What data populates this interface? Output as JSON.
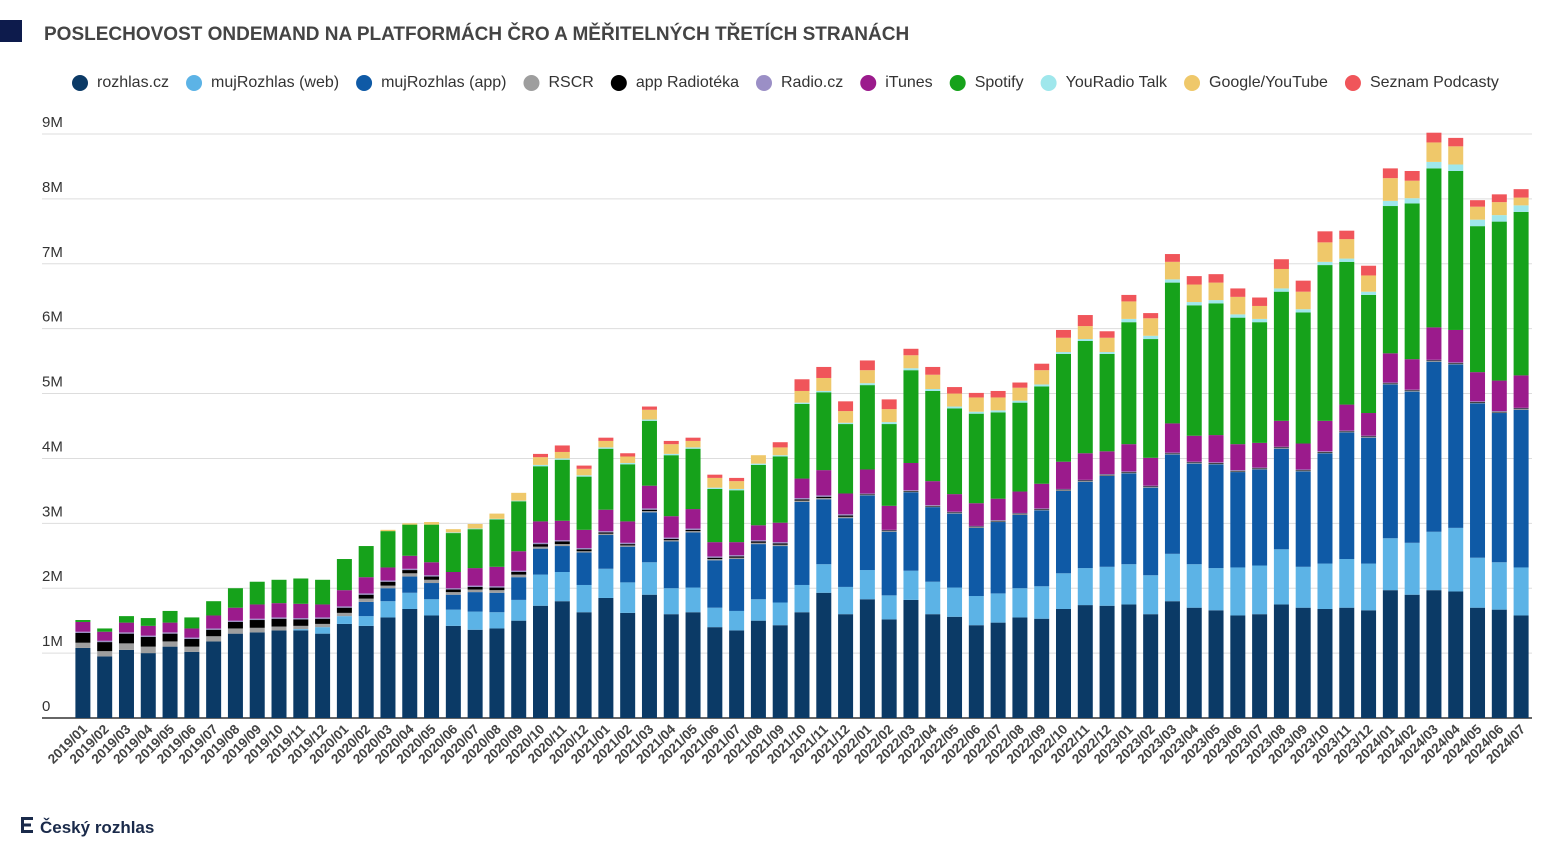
{
  "chart_data": {
    "type": "stacked-bar",
    "title": "POSLECHOVOST ONDEMAND NA PLATFORMÁCH ČRO A MĚŘITELNÝCH TŘETÍCH STRANÁCH",
    "footer": "Český rozhlas",
    "categories": [
      "2019/01",
      "2019/02",
      "2019/03",
      "2019/04",
      "2019/05",
      "2019/06",
      "2019/07",
      "2019/08",
      "2019/09",
      "2019/10",
      "2019/11",
      "2019/12",
      "2020/01",
      "2020/02",
      "2020/03",
      "2020/04",
      "2020/05",
      "2020/06",
      "2020/07",
      "2020/08",
      "2020/09",
      "2020/10",
      "2020/11",
      "2020/12",
      "2021/01",
      "2021/02",
      "2021/03",
      "2021/04",
      "2021/05",
      "2021/06",
      "2021/07",
      "2021/08",
      "2021/09",
      "2021/10",
      "2021/11",
      "2021/12",
      "2022/01",
      "2022/02",
      "2022/03",
      "2022/04",
      "2022/05",
      "2022/06",
      "2022/07",
      "2022/08",
      "2022/09",
      "2022/10",
      "2022/11",
      "2022/12",
      "2023/01",
      "2023/02",
      "2023/03",
      "2023/04",
      "2023/05",
      "2023/06",
      "2023/07",
      "2023/08",
      "2023/09",
      "2023/10",
      "2023/11",
      "2023/12",
      "2024/01",
      "2024/02",
      "2024/03",
      "2024/04",
      "2024/05",
      "2024/06",
      "2024/07"
    ],
    "ylim": [
      0,
      9
    ],
    "yticks": [
      0,
      {
        "value": 1,
        "label": "1M"
      },
      {
        "value": 2,
        "label": "2M"
      },
      {
        "value": 3,
        "label": "3M"
      },
      {
        "value": 4,
        "label": "4M"
      },
      {
        "value": 5,
        "label": "5M"
      },
      {
        "value": 6,
        "label": "6M"
      },
      {
        "value": 7,
        "label": "7M"
      },
      {
        "value": 8,
        "label": "8M"
      },
      {
        "value": 9,
        "label": "9M"
      }
    ],
    "grid": true,
    "legend": "top",
    "series": [
      {
        "name": "rozhlas.cz",
        "color": "#0b3a66",
        "values": [
          1.08,
          0.95,
          1.05,
          1.0,
          1.1,
          1.02,
          1.18,
          1.3,
          1.32,
          1.35,
          1.35,
          1.3,
          1.45,
          1.42,
          1.55,
          1.68,
          1.58,
          1.42,
          1.36,
          1.38,
          1.5,
          1.73,
          1.8,
          1.63,
          1.85,
          1.62,
          1.9,
          1.6,
          1.63,
          1.4,
          1.35,
          1.5,
          1.43,
          1.63,
          1.93,
          1.6,
          1.83,
          1.52,
          1.82,
          1.6,
          1.56,
          1.43,
          1.47,
          1.55,
          1.53,
          1.68,
          1.74,
          1.73,
          1.75,
          1.6,
          1.8,
          1.7,
          1.66,
          1.58,
          1.6,
          1.75,
          1.7,
          1.68,
          1.7,
          1.66,
          1.97,
          1.9,
          1.97,
          1.95,
          1.7,
          1.67,
          1.58
        ]
      },
      {
        "name": "mujRozhlas (web)",
        "color": "#5cb3e6",
        "values": [
          0,
          0,
          0,
          0,
          0,
          0,
          0,
          0,
          0,
          0,
          0.02,
          0.1,
          0.12,
          0.15,
          0.25,
          0.25,
          0.25,
          0.25,
          0.28,
          0.25,
          0.32,
          0.48,
          0.45,
          0.42,
          0.45,
          0.47,
          0.5,
          0.4,
          0.38,
          0.3,
          0.3,
          0.33,
          0.35,
          0.42,
          0.44,
          0.42,
          0.45,
          0.37,
          0.45,
          0.5,
          0.45,
          0.45,
          0.45,
          0.45,
          0.5,
          0.55,
          0.57,
          0.6,
          0.62,
          0.6,
          0.73,
          0.67,
          0.65,
          0.74,
          0.75,
          0.85,
          0.63,
          0.7,
          0.75,
          0.72,
          0.8,
          0.8,
          0.9,
          0.98,
          0.77,
          0.73,
          0.74
        ]
      },
      {
        "name": "mujRozhlas (app)",
        "color": "#0f5aa6",
        "values": [
          0,
          0,
          0,
          0,
          0,
          0,
          0,
          0,
          0,
          0,
          0,
          0,
          0,
          0.22,
          0.2,
          0.25,
          0.25,
          0.23,
          0.3,
          0.3,
          0.35,
          0.4,
          0.4,
          0.5,
          0.52,
          0.55,
          0.77,
          0.72,
          0.85,
          0.73,
          0.8,
          0.85,
          0.87,
          1.28,
          1.0,
          1.06,
          1.15,
          0.98,
          1.21,
          1.15,
          1.14,
          1.05,
          1.1,
          1.13,
          1.17,
          1.27,
          1.33,
          1.4,
          1.4,
          1.35,
          1.53,
          1.55,
          1.6,
          1.47,
          1.48,
          1.55,
          1.47,
          1.7,
          1.95,
          1.94,
          2.37,
          2.33,
          2.62,
          2.52,
          2.38,
          2.3,
          2.43
        ]
      },
      {
        "name": "RSCR",
        "color": "#9e9e9e",
        "values": [
          0.08,
          0.08,
          0.1,
          0.1,
          0.08,
          0.08,
          0.08,
          0.08,
          0.07,
          0.06,
          0.05,
          0.05,
          0.05,
          0.05,
          0.04,
          0.05,
          0.05,
          0.04,
          0.04,
          0.04,
          0.04,
          0.03,
          0.03,
          0.02,
          0.02,
          0.02,
          0.02,
          0.02,
          0.02,
          0.02,
          0.02,
          0.02,
          0.02,
          0.02,
          0.02,
          0.02,
          0.01,
          0.01,
          0.01,
          0.01,
          0.01,
          0.01,
          0.01,
          0.01,
          0.01,
          0.01,
          0.01,
          0.01,
          0.01,
          0.01,
          0.01,
          0.01,
          0.01,
          0.01,
          0.01,
          0.01,
          0.01,
          0.01,
          0.01,
          0.01,
          0.01,
          0.01,
          0.01,
          0.01,
          0.01,
          0.01,
          0.01
        ]
      },
      {
        "name": "app Radiotéka",
        "color": "#000000",
        "values": [
          0.15,
          0.14,
          0.15,
          0.15,
          0.12,
          0.12,
          0.1,
          0.1,
          0.12,
          0.12,
          0.1,
          0.08,
          0.08,
          0.06,
          0.06,
          0.05,
          0.05,
          0.04,
          0.04,
          0.04,
          0.04,
          0.04,
          0.04,
          0.03,
          0.02,
          0.02,
          0.02,
          0.02,
          0.02,
          0.02,
          0.02,
          0.02,
          0.02,
          0.02,
          0.02,
          0.02,
          0.01,
          0.01,
          0.01,
          0.01,
          0.01,
          0.01,
          0.01,
          0.01,
          0.01,
          0.01,
          0.01,
          0.01,
          0.01,
          0.01,
          0.01,
          0.01,
          0.01,
          0.01,
          0.01,
          0.01,
          0.01,
          0.01,
          0.01,
          0.01,
          0.01,
          0.01,
          0.01,
          0.01,
          0.01,
          0.01,
          0.01
        ]
      },
      {
        "name": "Radio.cz",
        "color": "#9b8fc6",
        "values": [
          0.02,
          0.02,
          0.02,
          0.02,
          0.02,
          0.02,
          0.02,
          0.02,
          0.02,
          0.02,
          0.02,
          0.02,
          0.02,
          0.02,
          0.02,
          0.02,
          0.02,
          0.02,
          0.02,
          0.02,
          0.02,
          0.02,
          0.02,
          0.02,
          0.02,
          0.02,
          0.02,
          0.02,
          0.02,
          0.02,
          0.02,
          0.02,
          0.02,
          0.02,
          0.02,
          0.02,
          0.01,
          0.01,
          0.01,
          0.01,
          0.01,
          0.01,
          0.01,
          0.01,
          0.01,
          0.01,
          0.01,
          0.01,
          0.01,
          0.01,
          0.01,
          0.01,
          0.01,
          0.01,
          0.01,
          0.01,
          0.01,
          0.01,
          0.01,
          0.01,
          0.01,
          0.01,
          0.01,
          0.01,
          0.01,
          0.01,
          0.01
        ]
      },
      {
        "name": "iTunes",
        "color": "#9b1b8c",
        "values": [
          0.15,
          0.14,
          0.15,
          0.15,
          0.15,
          0.14,
          0.2,
          0.2,
          0.22,
          0.22,
          0.22,
          0.2,
          0.25,
          0.25,
          0.2,
          0.2,
          0.2,
          0.25,
          0.27,
          0.3,
          0.3,
          0.33,
          0.3,
          0.28,
          0.33,
          0.33,
          0.35,
          0.33,
          0.3,
          0.22,
          0.2,
          0.23,
          0.3,
          0.3,
          0.39,
          0.32,
          0.37,
          0.37,
          0.42,
          0.37,
          0.27,
          0.35,
          0.33,
          0.33,
          0.38,
          0.42,
          0.41,
          0.35,
          0.42,
          0.43,
          0.45,
          0.4,
          0.42,
          0.4,
          0.38,
          0.4,
          0.4,
          0.47,
          0.4,
          0.35,
          0.45,
          0.47,
          0.5,
          0.5,
          0.45,
          0.47,
          0.5
        ]
      },
      {
        "name": "Spotify",
        "color": "#16a21b",
        "values": [
          0.03,
          0.05,
          0.1,
          0.12,
          0.18,
          0.17,
          0.22,
          0.3,
          0.35,
          0.36,
          0.39,
          0.38,
          0.48,
          0.48,
          0.56,
          0.48,
          0.58,
          0.6,
          0.6,
          0.73,
          0.77,
          0.85,
          0.94,
          0.82,
          0.94,
          0.88,
          1.0,
          0.94,
          0.93,
          0.82,
          0.8,
          0.93,
          1.02,
          1.15,
          1.2,
          1.07,
          1.3,
          1.26,
          1.43,
          1.39,
          1.32,
          1.38,
          1.33,
          1.37,
          1.5,
          1.66,
          1.73,
          1.5,
          1.88,
          1.83,
          2.17,
          2.01,
          2.03,
          1.95,
          1.86,
          1.99,
          2.02,
          2.4,
          2.2,
          1.82,
          2.27,
          2.4,
          2.45,
          2.45,
          2.25,
          2.45,
          2.52
        ]
      },
      {
        "name": "YouRadio Talk",
        "color": "#9fe7ec",
        "values": [
          0,
          0,
          0,
          0,
          0,
          0,
          0,
          0,
          0,
          0,
          0,
          0,
          0,
          0,
          0,
          0,
          0,
          0.01,
          0.01,
          0.01,
          0.01,
          0.02,
          0.02,
          0.02,
          0.02,
          0.02,
          0.02,
          0.02,
          0.02,
          0.02,
          0.02,
          0.02,
          0.02,
          0.02,
          0.02,
          0.02,
          0.03,
          0.03,
          0.03,
          0.03,
          0.03,
          0.03,
          0.03,
          0.03,
          0.03,
          0.03,
          0.03,
          0.03,
          0.05,
          0.05,
          0.05,
          0.05,
          0.05,
          0.05,
          0.05,
          0.05,
          0.05,
          0.05,
          0.05,
          0.05,
          0.08,
          0.08,
          0.1,
          0.1,
          0.1,
          0.1,
          0.1
        ]
      },
      {
        "name": "Google/YouTube",
        "color": "#efc86a",
        "values": [
          0,
          0,
          0,
          0,
          0,
          0,
          0,
          0,
          0,
          0,
          0,
          0,
          0,
          0,
          0.02,
          0.02,
          0.04,
          0.05,
          0.07,
          0.08,
          0.12,
          0.12,
          0.1,
          0.1,
          0.1,
          0.1,
          0.15,
          0.15,
          0.1,
          0.15,
          0.12,
          0.13,
          0.12,
          0.18,
          0.2,
          0.18,
          0.2,
          0.2,
          0.2,
          0.22,
          0.2,
          0.22,
          0.2,
          0.2,
          0.22,
          0.22,
          0.2,
          0.22,
          0.27,
          0.27,
          0.27,
          0.27,
          0.27,
          0.27,
          0.2,
          0.3,
          0.27,
          0.3,
          0.3,
          0.25,
          0.35,
          0.27,
          0.3,
          0.28,
          0.2,
          0.2,
          0.12
        ]
      },
      {
        "name": "Seznam Podcasty",
        "color": "#f0555a",
        "values": [
          0,
          0,
          0,
          0,
          0,
          0,
          0,
          0,
          0,
          0,
          0,
          0,
          0,
          0,
          0,
          0,
          0,
          0,
          0,
          0,
          0,
          0.05,
          0.1,
          0.05,
          0.05,
          0.05,
          0.05,
          0.05,
          0.05,
          0.05,
          0.05,
          0,
          0.08,
          0.18,
          0.17,
          0.15,
          0.15,
          0.15,
          0.1,
          0.12,
          0.1,
          0.07,
          0.1,
          0.08,
          0.1,
          0.12,
          0.17,
          0.1,
          0.1,
          0.08,
          0.12,
          0.13,
          0.13,
          0.13,
          0.13,
          0.15,
          0.17,
          0.17,
          0.13,
          0.15,
          0.15,
          0.15,
          0.15,
          0.13,
          0.1,
          0.12,
          0.13
        ]
      }
    ]
  }
}
